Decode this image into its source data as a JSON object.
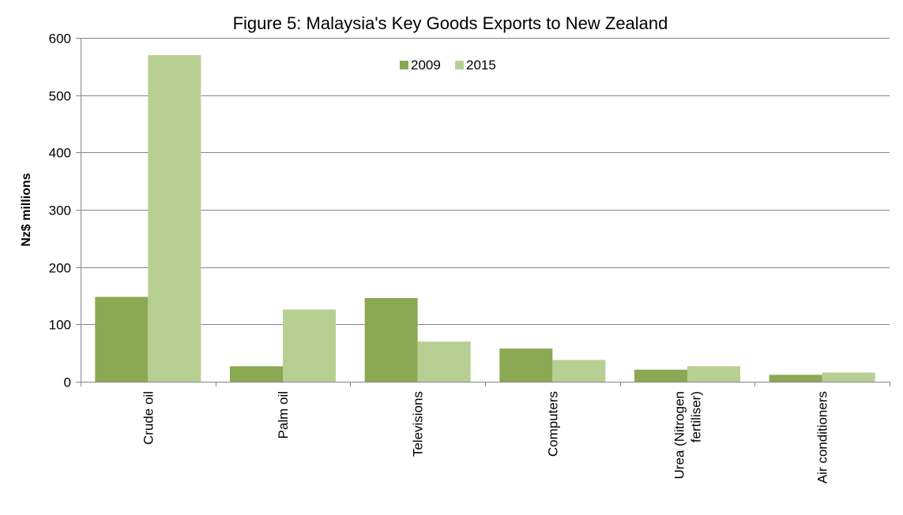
{
  "chart_data": {
    "type": "bar",
    "title": "Figure 5: Malaysia's Key Goods Exports to New Zealand",
    "xlabel": "",
    "ylabel": "Nz$ millions",
    "ylim": [
      0,
      600
    ],
    "yticks": [
      0,
      100,
      200,
      300,
      400,
      500,
      600
    ],
    "grid": true,
    "legend_position": "top-center",
    "categories": [
      [
        "Crude oil"
      ],
      [
        "Palm oil"
      ],
      [
        "Televisions"
      ],
      [
        "Computers"
      ],
      [
        "Urea (Nitrogen",
        "fertiliser)"
      ],
      [
        "Air conditioners"
      ]
    ],
    "series": [
      {
        "name": "2009",
        "color": "#8aa952",
        "values": [
          148,
          27,
          146,
          58,
          21,
          12
        ]
      },
      {
        "name": "2015",
        "color": "#b8cf94",
        "values": [
          570,
          126,
          70,
          38,
          27,
          16
        ]
      }
    ]
  }
}
